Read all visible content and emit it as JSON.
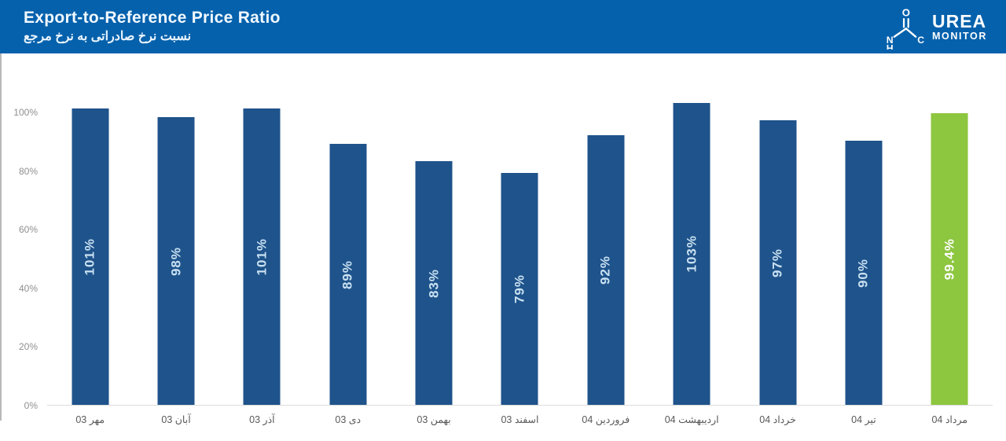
{
  "header": {
    "title": "Export-to-Reference Price Ratio",
    "subtitle_fa": "نسبت نرخ صادراتی به نرخ مرجع",
    "bg_color": "#0561AC",
    "brand": {
      "name_top": "UREA",
      "name_bottom": "MONITOR",
      "molecule": {
        "oxygen": "O",
        "nitrogen": "N",
        "hydrogen": "H",
        "carbon": "C"
      }
    }
  },
  "chart_data": {
    "type": "bar",
    "title": "Export-to-Reference Price Ratio",
    "subtitle": "نسبت نرخ صادراتی به نرخ مرجع",
    "categories": [
      "مهر 03",
      "آبان 03",
      "آذر 03",
      "دی 03",
      "بهمن 03",
      "اسفند 03",
      "فروردین 04",
      "اردیبهشت 04",
      "خرداد 04",
      "تیر 04",
      "مرداد 04"
    ],
    "values": [
      101,
      98,
      101,
      89,
      83,
      79,
      92,
      103,
      97,
      90,
      99.4
    ],
    "labels": [
      "101%",
      "98%",
      "101%",
      "89%",
      "83%",
      "79%",
      "92%",
      "103%",
      "97%",
      "90%",
      "99.4%"
    ],
    "y_ticks": [
      {
        "label": "0%",
        "value": 0
      },
      {
        "label": "20%",
        "value": 20
      },
      {
        "label": "40%",
        "value": 40
      },
      {
        "label": "60%",
        "value": 60
      },
      {
        "label": "80%",
        "value": 80
      },
      {
        "label": "100%",
        "value": 100
      }
    ],
    "ylim": [
      0,
      103
    ],
    "grid": false,
    "legend_position": "none",
    "bar_color": "#1F538B",
    "highlight_index": 10,
    "highlight_color": "#8DC63F",
    "label_color": "#C9E1F2",
    "highlight_label_color": "#FFFFFF"
  }
}
